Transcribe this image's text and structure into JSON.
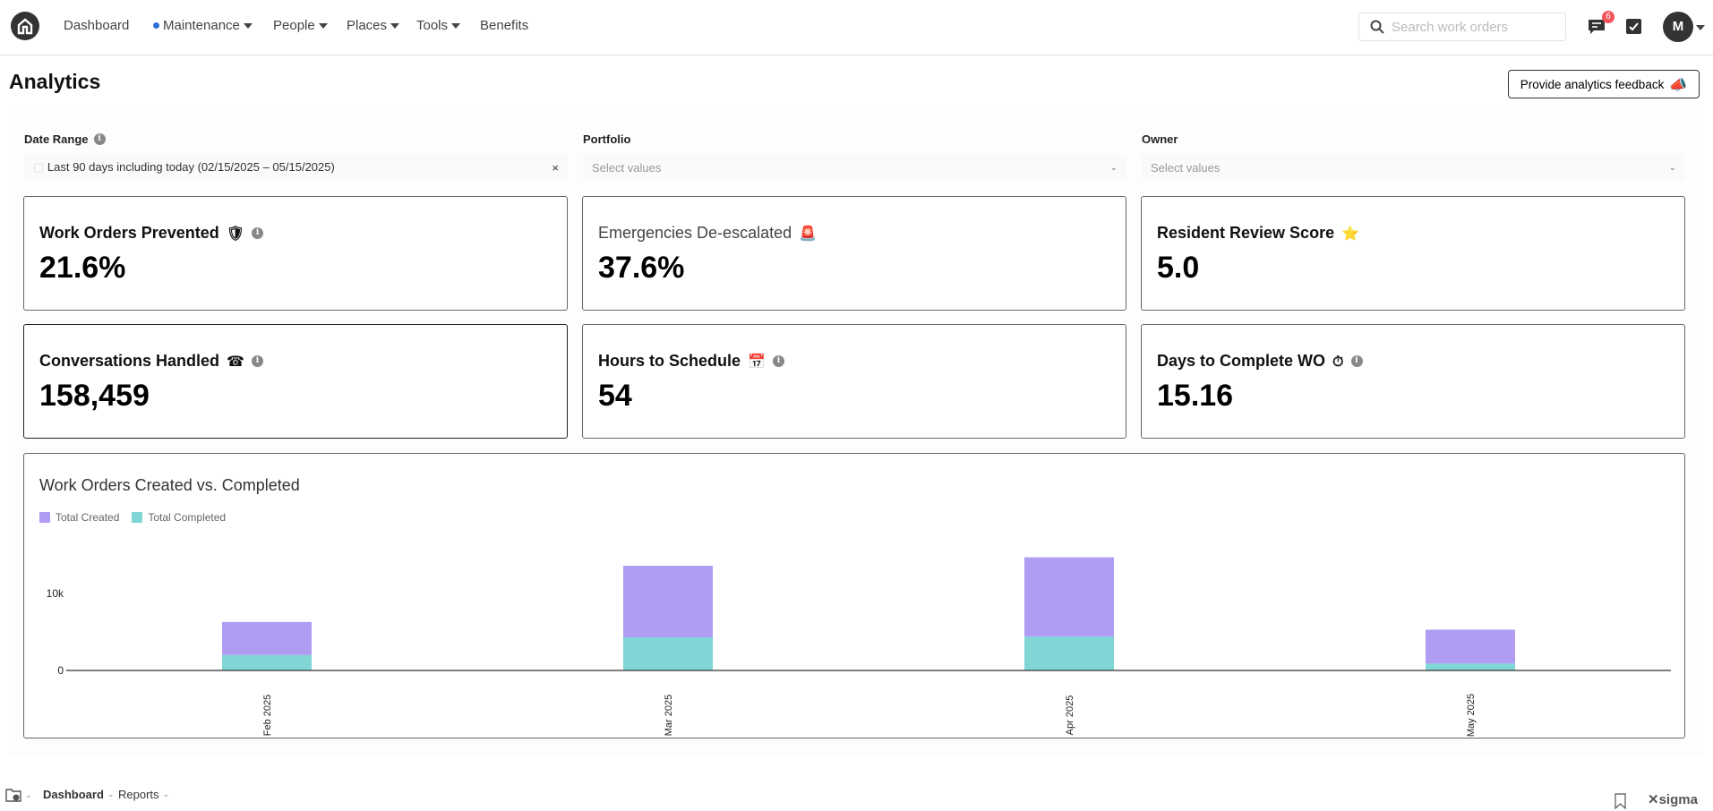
{
  "nav": {
    "items": [
      {
        "label": "Dashboard"
      },
      {
        "label": "Maintenance",
        "dot": true,
        "caret": true
      },
      {
        "label": "People",
        "caret": true
      },
      {
        "label": "Places",
        "caret": true
      },
      {
        "label": "Tools",
        "caret": true
      },
      {
        "label": "Benefits"
      }
    ],
    "search_placeholder": "Search work orders",
    "messages_badge": "6",
    "avatar_initial": "M"
  },
  "page": {
    "title": "Analytics",
    "feedback_label": "Provide analytics feedback",
    "feedback_emoji": "📣"
  },
  "filters": {
    "date_range": {
      "label": "Date Range",
      "value": "Last 90 days including today (02/15/2025 – 05/15/2025)",
      "clear": "×"
    },
    "portfolio": {
      "label": "Portfolio",
      "placeholder": "Select values"
    },
    "owner": {
      "label": "Owner",
      "placeholder": "Select values"
    }
  },
  "kpis": [
    {
      "title": "Work Orders Prevented",
      "emoji": "🛡",
      "value": "21.6%",
      "info": true
    },
    {
      "title": "Emergencies De-escalated",
      "emoji": "🚨",
      "value": "37.6%",
      "info": false
    },
    {
      "title": "Resident Review Score",
      "emoji": "⭐",
      "value": "5.0",
      "info": false
    },
    {
      "title": "Conversations Handled",
      "emoji": "☎",
      "value": "158,459",
      "info": true
    },
    {
      "title": "Hours to Schedule",
      "emoji": "📅",
      "value": "54",
      "info": true
    },
    {
      "title": "Days to Complete WO",
      "emoji": "⏱",
      "value": "15.16",
      "info": true
    }
  ],
  "chart_data": {
    "type": "bar",
    "stacked": true,
    "title": "Work Orders Created vs. Completed",
    "categories": [
      "Feb 2025",
      "Mar 2025",
      "Apr 2025",
      "May 2025"
    ],
    "series": [
      {
        "name": "Total Completed",
        "color": "#7fd6d4",
        "values": [
          2000,
          4300,
          4400,
          900
        ]
      },
      {
        "name": "Total Created",
        "color": "#b19cf4",
        "values": [
          4300,
          9300,
          10300,
          4400
        ]
      }
    ],
    "yticks": [
      {
        "value": 0,
        "label": "0"
      },
      {
        "value": 10000,
        "label": "10k"
      }
    ],
    "ylim": [
      0,
      15500
    ],
    "legend": "top-left",
    "grid": false
  },
  "footer": {
    "tabs": [
      {
        "label": "Dashboard",
        "active": true
      },
      {
        "label": "Reports"
      }
    ],
    "brand": "sigma"
  }
}
